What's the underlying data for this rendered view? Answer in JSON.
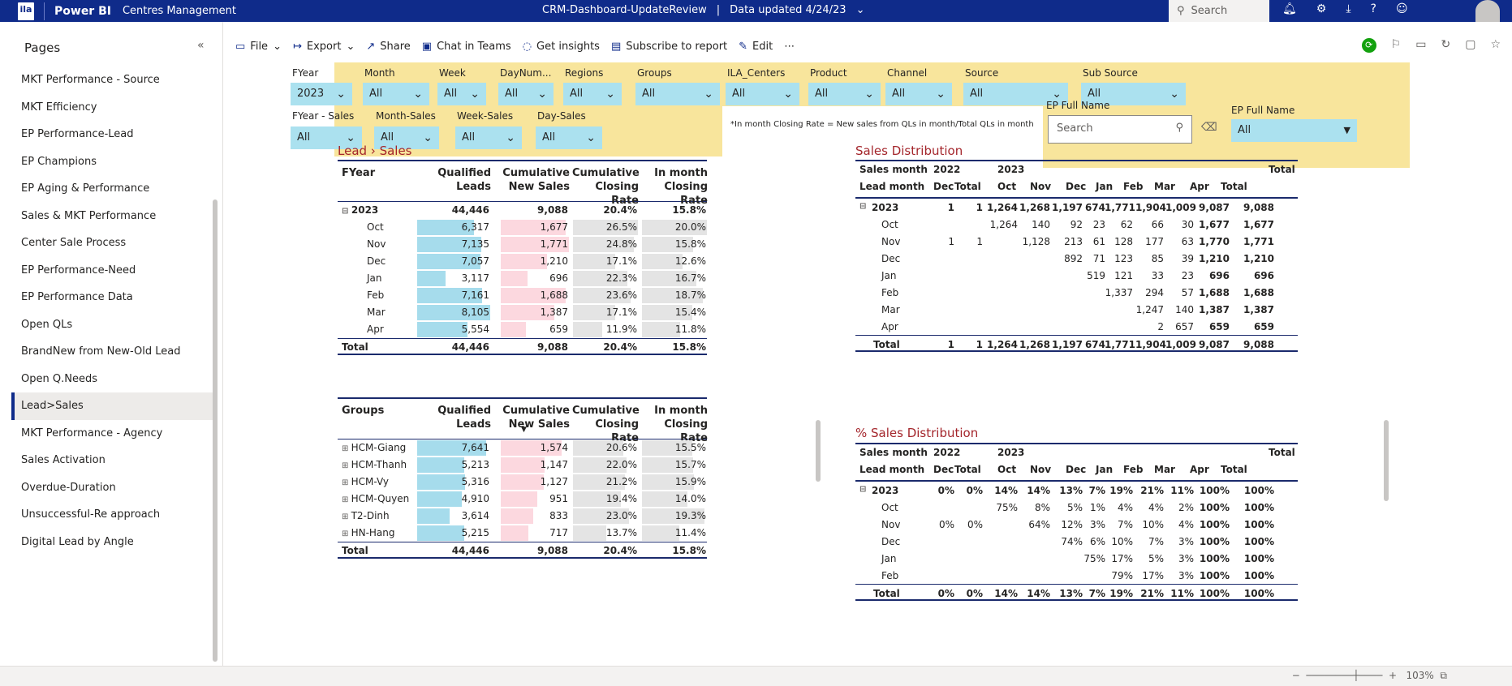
{
  "topbar": {
    "logo_text": "ila",
    "brand": "Power BI",
    "app": "Centres Management",
    "report_name": "CRM-Dashboard-UpdateReview",
    "data_updated": "Data updated 4/24/23",
    "search_placeholder": "Search"
  },
  "sidebar": {
    "title": "Pages",
    "items": [
      "MKT Performance - Source",
      "MKT Efficiency",
      "EP Performance-Lead",
      "EP Champions",
      "EP Aging & Performance",
      "Sales & MKT Performance",
      "Center Sale Process",
      "EP Performance-Need",
      "EP Performance Data",
      "Open QLs",
      "BrandNew from New-Old Lead",
      "Open Q.Needs",
      "Lead>Sales",
      "MKT Performance - Agency",
      "Sales Activation",
      "Overdue-Duration",
      "Unsuccessful-Re approach",
      "Digital Lead by Angle"
    ],
    "active_index": 12
  },
  "actions": [
    "File",
    "Export",
    "Share",
    "Chat in Teams",
    "Get insights",
    "Subscribe to report",
    "Edit"
  ],
  "filters": {
    "row1": [
      {
        "label": "FYear",
        "value": "2023"
      },
      {
        "label": "Month",
        "value": "All"
      },
      {
        "label": "Week",
        "value": "All"
      },
      {
        "label": "DayNum...",
        "value": "All"
      },
      {
        "label": "Regions",
        "value": "All"
      },
      {
        "label": "Groups",
        "value": "All"
      },
      {
        "label": "ILA_Centers",
        "value": "All"
      },
      {
        "label": "Product",
        "value": "All"
      },
      {
        "label": "Channel",
        "value": "All"
      },
      {
        "label": "Source",
        "value": "All"
      },
      {
        "label": "Sub Source",
        "value": "All"
      }
    ],
    "row2": [
      {
        "label": "FYear - Sales",
        "value": "All"
      },
      {
        "label": "Month-Sales",
        "value": "All"
      },
      {
        "label": "Week-Sales",
        "value": "All"
      },
      {
        "label": "Day-Sales",
        "value": "All"
      }
    ],
    "note": "*In month Closing Rate = New sales from QLs in month/Total QLs in month",
    "ep_search_label": "EP Full Name",
    "ep_search_placeholder": "Search",
    "ep_select_label": "EP Full Name",
    "ep_select_value": "All"
  },
  "lead_sales": {
    "title": "Lead › Sales",
    "headers": [
      "FYear",
      "Qualified Leads",
      "Cumulative New Sales",
      "Cumulative Closing Rate",
      "In month Closing Rate"
    ],
    "year": {
      "label": "2023",
      "ql": "44,446",
      "ns": "9,088",
      "cr": "20.4%",
      "im": "15.8%"
    },
    "rows": [
      {
        "label": "Oct",
        "ql": "6,317",
        "ns": "1,677",
        "cr": "26.5%",
        "im": "20.0%",
        "qlv": 6317,
        "nsv": 1677,
        "crv": 26.5,
        "imv": 20.0
      },
      {
        "label": "Nov",
        "ql": "7,135",
        "ns": "1,771",
        "cr": "24.8%",
        "im": "15.8%",
        "qlv": 7135,
        "nsv": 1771,
        "crv": 24.8,
        "imv": 15.8
      },
      {
        "label": "Dec",
        "ql": "7,057",
        "ns": "1,210",
        "cr": "17.1%",
        "im": "12.6%",
        "qlv": 7057,
        "nsv": 1210,
        "crv": 17.1,
        "imv": 12.6
      },
      {
        "label": "Jan",
        "ql": "3,117",
        "ns": "696",
        "cr": "22.3%",
        "im": "16.7%",
        "qlv": 3117,
        "nsv": 696,
        "crv": 22.3,
        "imv": 16.7
      },
      {
        "label": "Feb",
        "ql": "7,161",
        "ns": "1,688",
        "cr": "23.6%",
        "im": "18.7%",
        "qlv": 7161,
        "nsv": 1688,
        "crv": 23.6,
        "imv": 18.7
      },
      {
        "label": "Mar",
        "ql": "8,105",
        "ns": "1,387",
        "cr": "17.1%",
        "im": "15.4%",
        "qlv": 8105,
        "nsv": 1387,
        "crv": 17.1,
        "imv": 15.4
      },
      {
        "label": "Apr",
        "ql": "5,554",
        "ns": "659",
        "cr": "11.9%",
        "im": "11.8%",
        "qlv": 5554,
        "nsv": 659,
        "crv": 11.9,
        "imv": 11.8
      }
    ],
    "total": {
      "label": "Total",
      "ql": "44,446",
      "ns": "9,088",
      "cr": "20.4%",
      "im": "15.8%"
    }
  },
  "groups": {
    "headers": [
      "Groups",
      "Qualified Leads",
      "Cumulative New Sales",
      "Cumulative Closing Rate",
      "In month Closing Rate"
    ],
    "rows": [
      {
        "label": "HCM-Giang",
        "ql": "7,641",
        "ns": "1,574",
        "cr": "20.6%",
        "im": "15.5%",
        "qlv": 7641,
        "nsv": 1574,
        "crv": 20.6,
        "imv": 15.5
      },
      {
        "label": "HCM-Thanh",
        "ql": "5,213",
        "ns": "1,147",
        "cr": "22.0%",
        "im": "15.7%",
        "qlv": 5213,
        "nsv": 1147,
        "crv": 22.0,
        "imv": 15.7
      },
      {
        "label": "HCM-Vy",
        "ql": "5,316",
        "ns": "1,127",
        "cr": "21.2%",
        "im": "15.9%",
        "qlv": 5316,
        "nsv": 1127,
        "crv": 21.2,
        "imv": 15.9
      },
      {
        "label": "HCM-Quyen",
        "ql": "4,910",
        "ns": "951",
        "cr": "19.4%",
        "im": "14.0%",
        "qlv": 4910,
        "nsv": 951,
        "crv": 19.4,
        "imv": 14.0
      },
      {
        "label": "T2-Dinh",
        "ql": "3,614",
        "ns": "833",
        "cr": "23.0%",
        "im": "19.3%",
        "qlv": 3614,
        "nsv": 833,
        "crv": 23.0,
        "imv": 19.3
      },
      {
        "label": "HN-Hang",
        "ql": "5,215",
        "ns": "717",
        "cr": "13.7%",
        "im": "11.4%",
        "qlv": 5215,
        "nsv": 717,
        "crv": 13.7,
        "imv": 11.4
      }
    ],
    "total": {
      "label": "Total",
      "ql": "44,446",
      "ns": "9,088",
      "cr": "20.4%",
      "im": "15.8%"
    }
  },
  "sales_dist": {
    "title": "Sales Distribution",
    "h1": [
      "Sales month",
      "2022",
      "",
      "2023",
      "",
      "",
      "",
      "",
      "",
      "",
      "",
      "",
      "Total"
    ],
    "h2": [
      "Lead month",
      "Dec",
      "Total",
      "Oct",
      "Nov",
      "Dec",
      "Jan",
      "Feb",
      "Mar",
      "Apr",
      "Total",
      ""
    ],
    "rows": [
      [
        "2023",
        "1",
        "1",
        "1,264",
        "1,268",
        "1,197",
        "674",
        "1,771",
        "1,904",
        "1,009",
        "9,087",
        "9,088"
      ],
      [
        "Oct",
        "",
        "",
        "1,264",
        "140",
        "92",
        "23",
        "62",
        "66",
        "30",
        "1,677",
        "1,677"
      ],
      [
        "Nov",
        "1",
        "1",
        "",
        "1,128",
        "213",
        "61",
        "128",
        "177",
        "63",
        "1,770",
        "1,771"
      ],
      [
        "Dec",
        "",
        "",
        "",
        "",
        "892",
        "71",
        "123",
        "85",
        "39",
        "1,210",
        "1,210"
      ],
      [
        "Jan",
        "",
        "",
        "",
        "",
        "",
        "519",
        "121",
        "33",
        "23",
        "696",
        "696"
      ],
      [
        "Feb",
        "",
        "",
        "",
        "",
        "",
        "",
        "1,337",
        "294",
        "57",
        "1,688",
        "1,688"
      ],
      [
        "Mar",
        "",
        "",
        "",
        "",
        "",
        "",
        "",
        "1,247",
        "140",
        "1,387",
        "1,387"
      ],
      [
        "Apr",
        "",
        "",
        "",
        "",
        "",
        "",
        "",
        "2",
        "657",
        "659",
        "659"
      ],
      [
        "Total",
        "1",
        "1",
        "1,264",
        "1,268",
        "1,197",
        "674",
        "1,771",
        "1,904",
        "1,009",
        "9,087",
        "9,088"
      ]
    ]
  },
  "pct_dist": {
    "title": "% Sales Distribution",
    "rows": [
      [
        "2023",
        "0%",
        "0%",
        "14%",
        "14%",
        "13%",
        "7%",
        "19%",
        "21%",
        "11%",
        "100%",
        "100%"
      ],
      [
        "Oct",
        "",
        "",
        "75%",
        "8%",
        "5%",
        "1%",
        "4%",
        "4%",
        "2%",
        "100%",
        "100%"
      ],
      [
        "Nov",
        "0%",
        "0%",
        "",
        "64%",
        "12%",
        "3%",
        "7%",
        "10%",
        "4%",
        "100%",
        "100%"
      ],
      [
        "Dec",
        "",
        "",
        "",
        "",
        "74%",
        "6%",
        "10%",
        "7%",
        "3%",
        "100%",
        "100%"
      ],
      [
        "Jan",
        "",
        "",
        "",
        "",
        "",
        "75%",
        "17%",
        "5%",
        "3%",
        "100%",
        "100%"
      ],
      [
        "Feb",
        "",
        "",
        "",
        "",
        "",
        "",
        "79%",
        "17%",
        "3%",
        "100%",
        "100%"
      ],
      [
        "Total",
        "0%",
        "0%",
        "14%",
        "14%",
        "13%",
        "7%",
        "19%",
        "21%",
        "11%",
        "100%",
        "100%"
      ]
    ]
  },
  "zoom": "103%",
  "colors": {
    "topbar": "#0f2b8a",
    "filter_bg": "#f8e59c",
    "select_bg": "#abe1ef",
    "ql_bar": "#a6dcec",
    "ns_bar": "#fcd8df",
    "rate_bar": "#e4e4e4",
    "title_red": "#a4262c"
  }
}
